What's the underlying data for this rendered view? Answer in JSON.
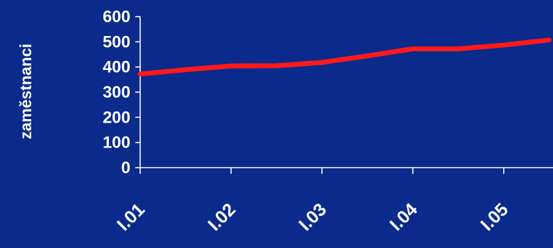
{
  "chart_data": {
    "type": "line",
    "title": "",
    "xlabel": "",
    "ylabel": "zaměstnanci",
    "ylim": [
      0,
      600
    ],
    "yticks": [
      "0",
      "100",
      "200",
      "300",
      "400",
      "500",
      "600"
    ],
    "categories": [
      "I.01",
      "I.02",
      "I.03",
      "I.04",
      "I.05"
    ],
    "x": [
      0,
      0.5,
      1,
      1.5,
      2,
      2.5,
      3,
      3.5,
      4,
      4.5
    ],
    "series": [
      {
        "values": [
          372,
          389,
          404,
          405,
          418,
          444,
          472,
          472,
          487,
          507
        ],
        "color": "#ff1a1a"
      }
    ],
    "grid": false,
    "legend": "none",
    "colors": {
      "background": "#0a2a8c",
      "axis": "#ffffff",
      "text": "#ffffff",
      "line": "#ff1a1a"
    }
  }
}
